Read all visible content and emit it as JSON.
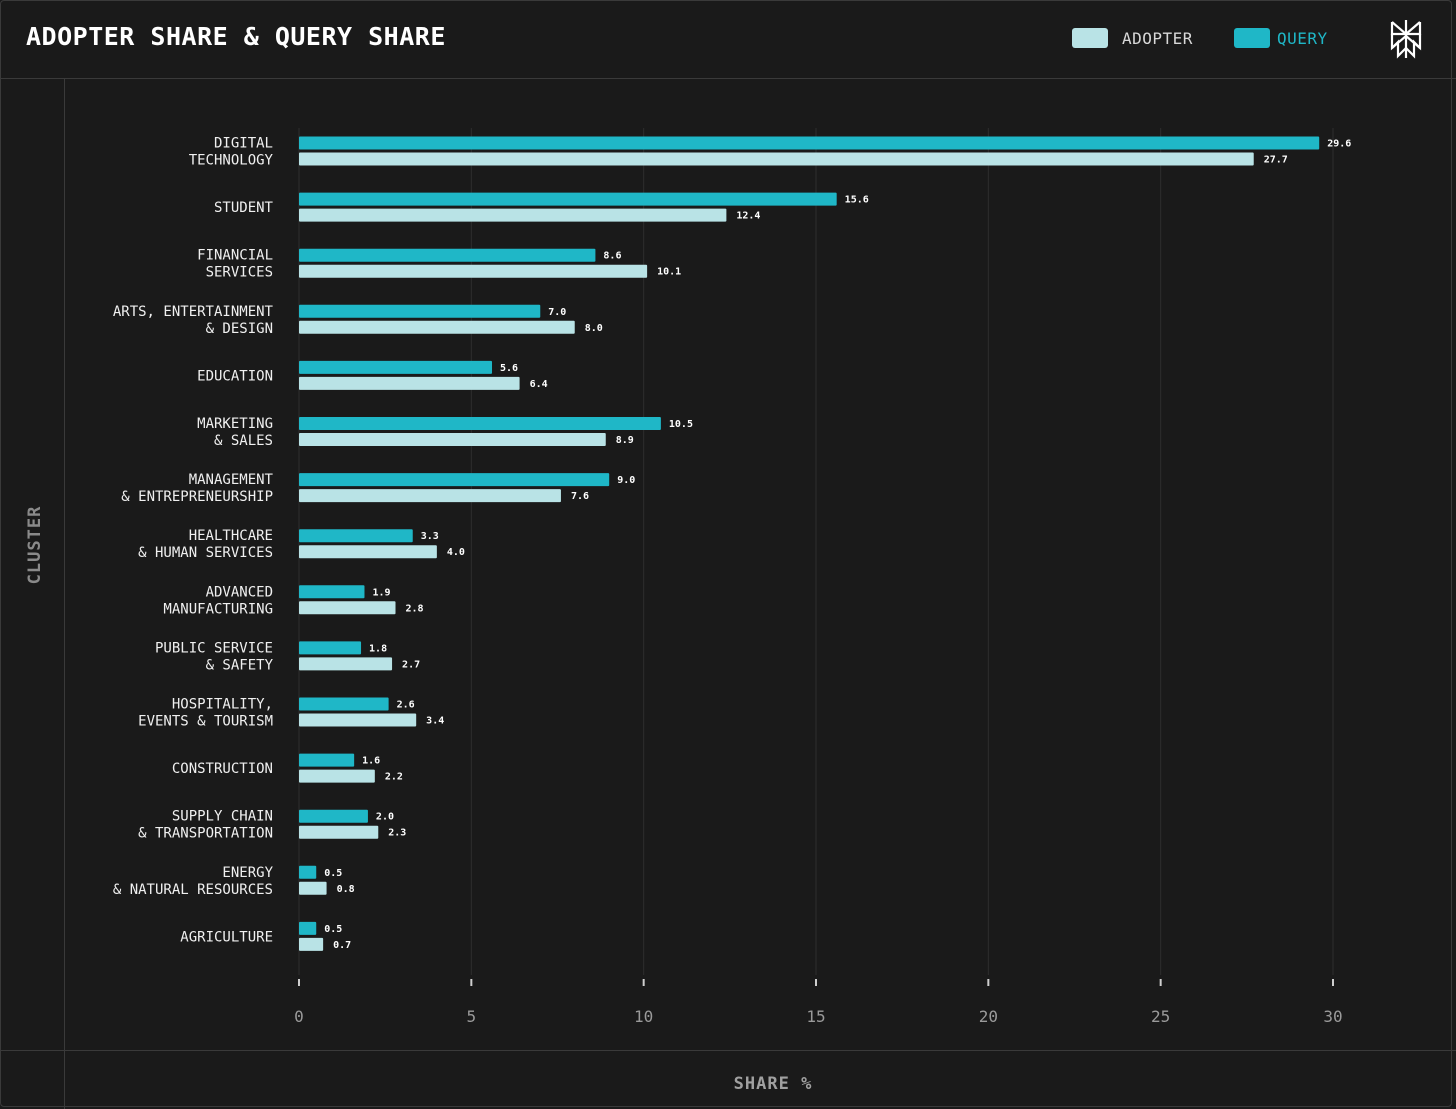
{
  "header": {
    "title": "ADOPTER SHARE & QUERY SHARE",
    "legend": [
      {
        "label": "ADOPTER",
        "color": "#b9e3e6"
      },
      {
        "label": "QUERY",
        "color": "#1fb7c7"
      }
    ],
    "logo_icon": "perplexity-logo-icon"
  },
  "colors": {
    "background": "#1a1a1a",
    "adopter": "#b9e3e6",
    "query": "#1fb7c7",
    "grid": "#2e2e2e",
    "text": "#e8e8e8"
  },
  "chart_data": {
    "type": "bar",
    "orientation": "horizontal",
    "title": "ADOPTER SHARE & QUERY SHARE",
    "xlabel": "SHARE %",
    "ylabel": "CLUSTER",
    "xlim": [
      0,
      30
    ],
    "xticks": [
      "0",
      "5",
      "10",
      "15",
      "20",
      "25",
      "30"
    ],
    "grid": true,
    "legend_position": "top-right",
    "categories": [
      [
        "DIGITAL",
        "TECHNOLOGY"
      ],
      [
        "STUDENT"
      ],
      [
        "FINANCIAL",
        "SERVICES"
      ],
      [
        "ARTS, ENTERTAINMENT",
        "& DESIGN"
      ],
      [
        "EDUCATION"
      ],
      [
        "MARKETING",
        "& SALES"
      ],
      [
        "MANAGEMENT",
        "& ENTREPRENEURSHIP"
      ],
      [
        "HEALTHCARE",
        "& HUMAN SERVICES"
      ],
      [
        "ADVANCED",
        "MANUFACTURING"
      ],
      [
        "PUBLIC SERVICE",
        "& SAFETY"
      ],
      [
        "HOSPITALITY,",
        "EVENTS & TOURISM"
      ],
      [
        "CONSTRUCTION"
      ],
      [
        "SUPPLY CHAIN",
        "& TRANSPORTATION"
      ],
      [
        "ENERGY",
        "& NATURAL RESOURCES"
      ],
      [
        "AGRICULTURE"
      ]
    ],
    "series": [
      {
        "name": "QUERY",
        "values": [
          29.6,
          15.6,
          8.6,
          7.0,
          5.6,
          10.5,
          9.0,
          3.3,
          1.9,
          1.8,
          2.6,
          1.6,
          2.0,
          0.5,
          0.5
        ],
        "labels": [
          "29.6",
          "15.6",
          "8.6",
          "7.0",
          "5.6",
          "10.5",
          "9.0",
          "3.3",
          "1.9",
          "1.8",
          "2.6",
          "1.6",
          "2.0",
          "0.5",
          "0.5"
        ]
      },
      {
        "name": "ADOPTER",
        "values": [
          27.7,
          12.4,
          10.1,
          8.0,
          6.4,
          8.9,
          7.6,
          4.0,
          2.8,
          2.7,
          3.4,
          2.2,
          2.3,
          0.8,
          0.7
        ],
        "labels": [
          "27.7",
          "12.4",
          "10.1",
          "8.0",
          "6.4",
          "8.9",
          "7.6",
          "4.0",
          "2.8",
          "2.7",
          "3.4",
          "2.2",
          "2.3",
          "0.8",
          "0.7"
        ]
      }
    ]
  }
}
